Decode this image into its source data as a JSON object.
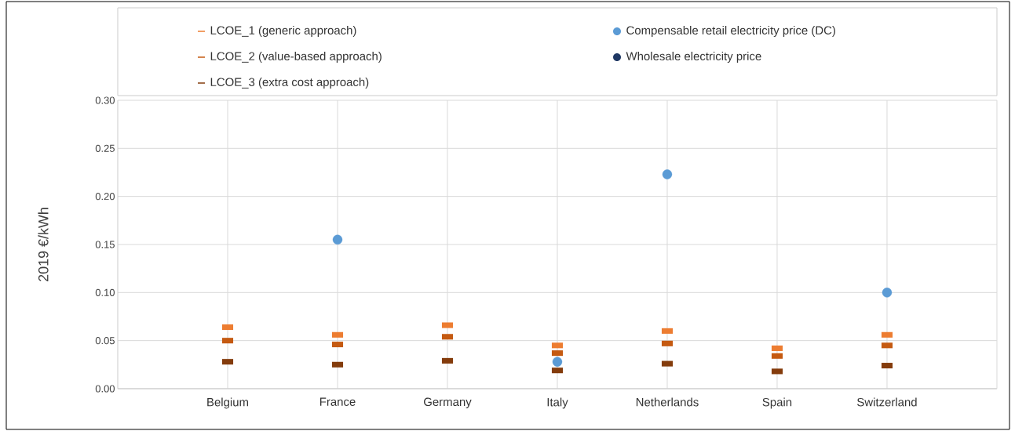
{
  "chart_data": {
    "type": "scatter",
    "ylabel": "2019 €/kWh",
    "categories": [
      "Belgium",
      "France",
      "Germany",
      "Italy",
      "Netherlands",
      "Spain",
      "Switzerland"
    ],
    "series": [
      {
        "name": "LCOE_1 (generic approach)",
        "color": "#ed7d31",
        "marker": "square",
        "values": [
          0.064,
          0.056,
          0.066,
          0.045,
          0.06,
          0.042,
          0.056
        ]
      },
      {
        "name": "LCOE_2 (value-based approach)",
        "color": "#c55a11",
        "marker": "square",
        "values": [
          0.05,
          0.046,
          0.054,
          0.037,
          0.047,
          0.034,
          0.045
        ]
      },
      {
        "name": "LCOE_3 (extra cost approach)",
        "color": "#843c0c",
        "marker": "square",
        "values": [
          0.028,
          0.025,
          0.029,
          0.019,
          0.026,
          0.018,
          0.024
        ]
      },
      {
        "name": "Compensable retail electricity price (DC)",
        "color": "#5b9bd5",
        "marker": "circle",
        "values": [
          null,
          0.155,
          null,
          0.028,
          0.223,
          null,
          0.1
        ]
      },
      {
        "name": "Wholesale electricity price",
        "color": "#1f3864",
        "marker": "circle",
        "values": [
          null,
          null,
          null,
          null,
          null,
          null,
          null
        ]
      }
    ],
    "ylim": [
      0,
      0.3
    ],
    "yticks": [
      {
        "value": 0,
        "label": "0.00"
      },
      {
        "value": 0.05,
        "label": "0.05"
      },
      {
        "value": 0.1,
        "label": "0.10"
      },
      {
        "value": 0.15,
        "label": "0.15"
      },
      {
        "value": 0.2,
        "label": "0.20"
      },
      {
        "value": 0.25,
        "label": "0.25"
      },
      {
        "value": 0.3,
        "label": "0.30"
      }
    ],
    "grid": true,
    "legend": "top"
  }
}
